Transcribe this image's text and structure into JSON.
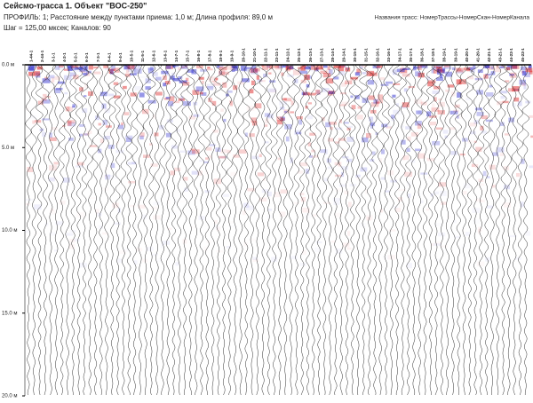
{
  "header": {
    "title": "Сейсмо-трасса 1. Объект \"ВОС-250\"",
    "line1": "ПРОФИЛЬ: 1;  Расстояние между пунктами приема: 1,0 м;  Длина профиля: 89,0 м",
    "line2": "Шаг = 125,00 мксек;  Каналов: 90",
    "right": "Названия трасс: НомерТрассы-НомерСкан-НомерКанала"
  },
  "axis": {
    "lim": [
      0,
      20
    ],
    "ticks": [
      {
        "value": 0,
        "label": "0.0 м"
      },
      {
        "value": 5,
        "label": "5.0 м"
      },
      {
        "value": 10,
        "label": "10.0 м"
      },
      {
        "value": 15,
        "label": "15.0 м"
      },
      {
        "value": 20,
        "label": "20.0 м"
      }
    ]
  },
  "trace_labels": [
    "1-44-1",
    "2-44-1",
    "3-1-1",
    "4-2-1",
    "5-2-1",
    "6-3-1",
    "7-3-1",
    "8-4-1",
    "9-4-1",
    "10-5-1",
    "11-5-1",
    "12-6-1",
    "13-6-1",
    "14-7-1",
    "15-7-1",
    "16-8-1",
    "17-8-1",
    "18-9-1",
    "19-9-1",
    "20-10-1",
    "21-10-1",
    "22-11-1",
    "23-11-1",
    "24-12-1",
    "25-12-1",
    "26-13-1",
    "27-13-1",
    "28-14-1",
    "29-14-1",
    "30-15-1",
    "31-15-1",
    "32-16-1",
    "33-16-1",
    "34-17-1",
    "35-17-1",
    "36-18-1",
    "37-18-1",
    "38-19-1",
    "39-19-1",
    "40-20-1",
    "41-20-1",
    "42-21-1",
    "43-21-1",
    "44-22-1",
    "45-22-1"
  ]
}
